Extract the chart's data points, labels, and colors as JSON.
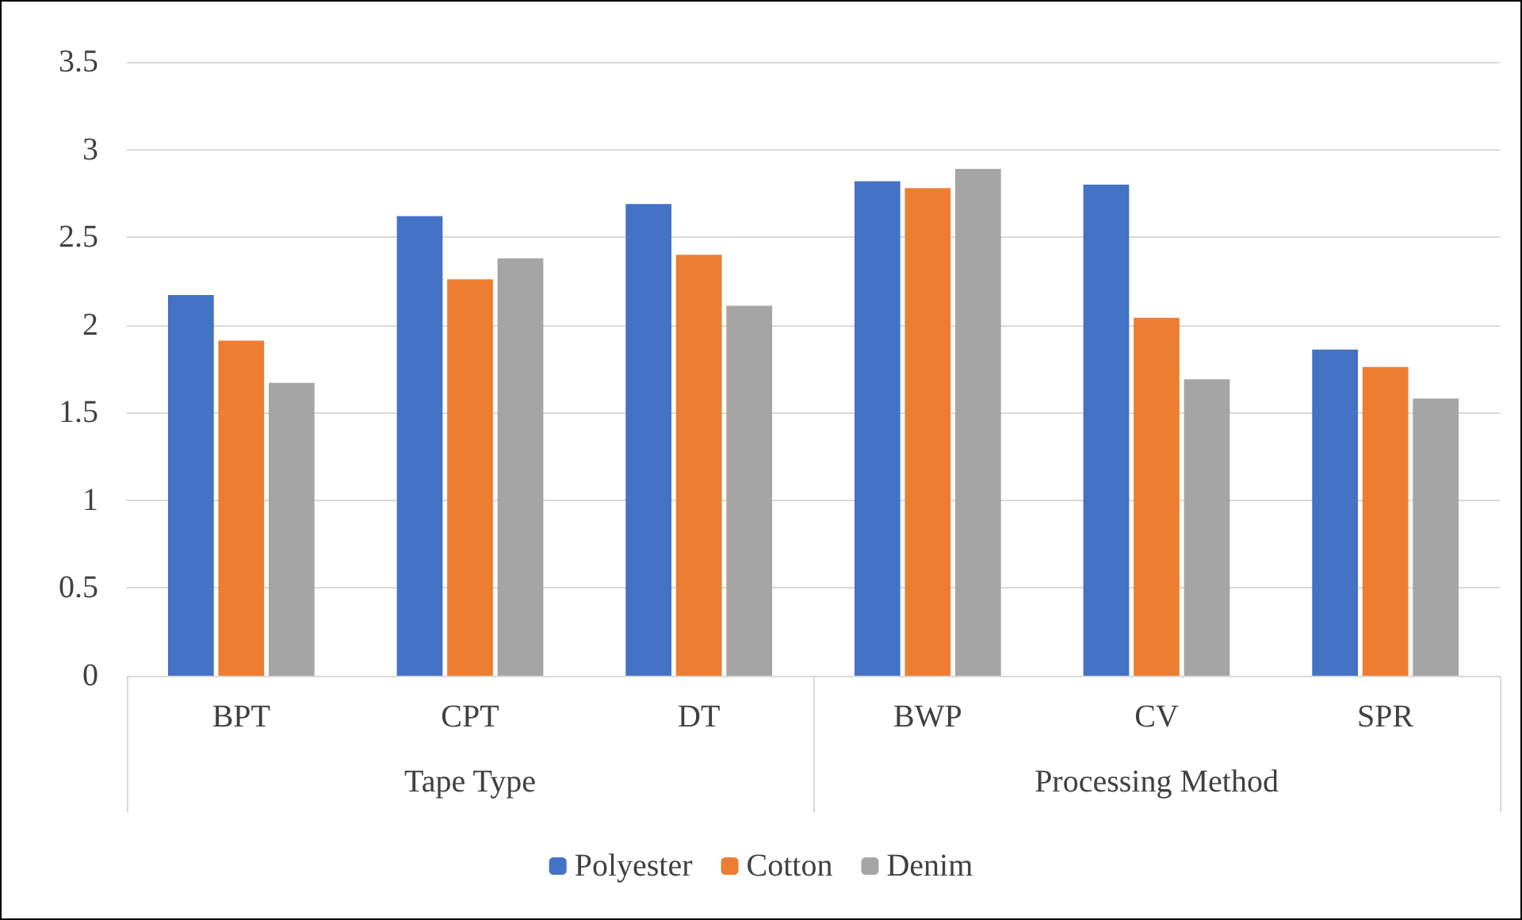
{
  "chart_data": {
    "type": "bar",
    "categories": [
      "BPT",
      "CPT",
      "DT",
      "BWP",
      "CV",
      "SPR"
    ],
    "series": [
      {
        "name": "Polyester",
        "color": "#4472c4",
        "values": [
          2.17,
          2.62,
          2.69,
          2.82,
          2.8,
          1.86
        ]
      },
      {
        "name": "Cotton",
        "color": "#ed7d31",
        "values": [
          1.91,
          2.26,
          2.4,
          2.78,
          2.04,
          1.76
        ]
      },
      {
        "name": "Denim",
        "color": "#a5a5a5",
        "values": [
          1.67,
          2.38,
          2.11,
          2.89,
          1.69,
          1.58
        ]
      }
    ],
    "annotations": [
      "Tape Type",
      "Processing Method"
    ],
    "ylim": [
      0,
      3.5
    ],
    "yticks": [
      0,
      0.5,
      1,
      1.5,
      2,
      2.5,
      3,
      3.5
    ],
    "grid": "y",
    "legend": "bottom"
  }
}
